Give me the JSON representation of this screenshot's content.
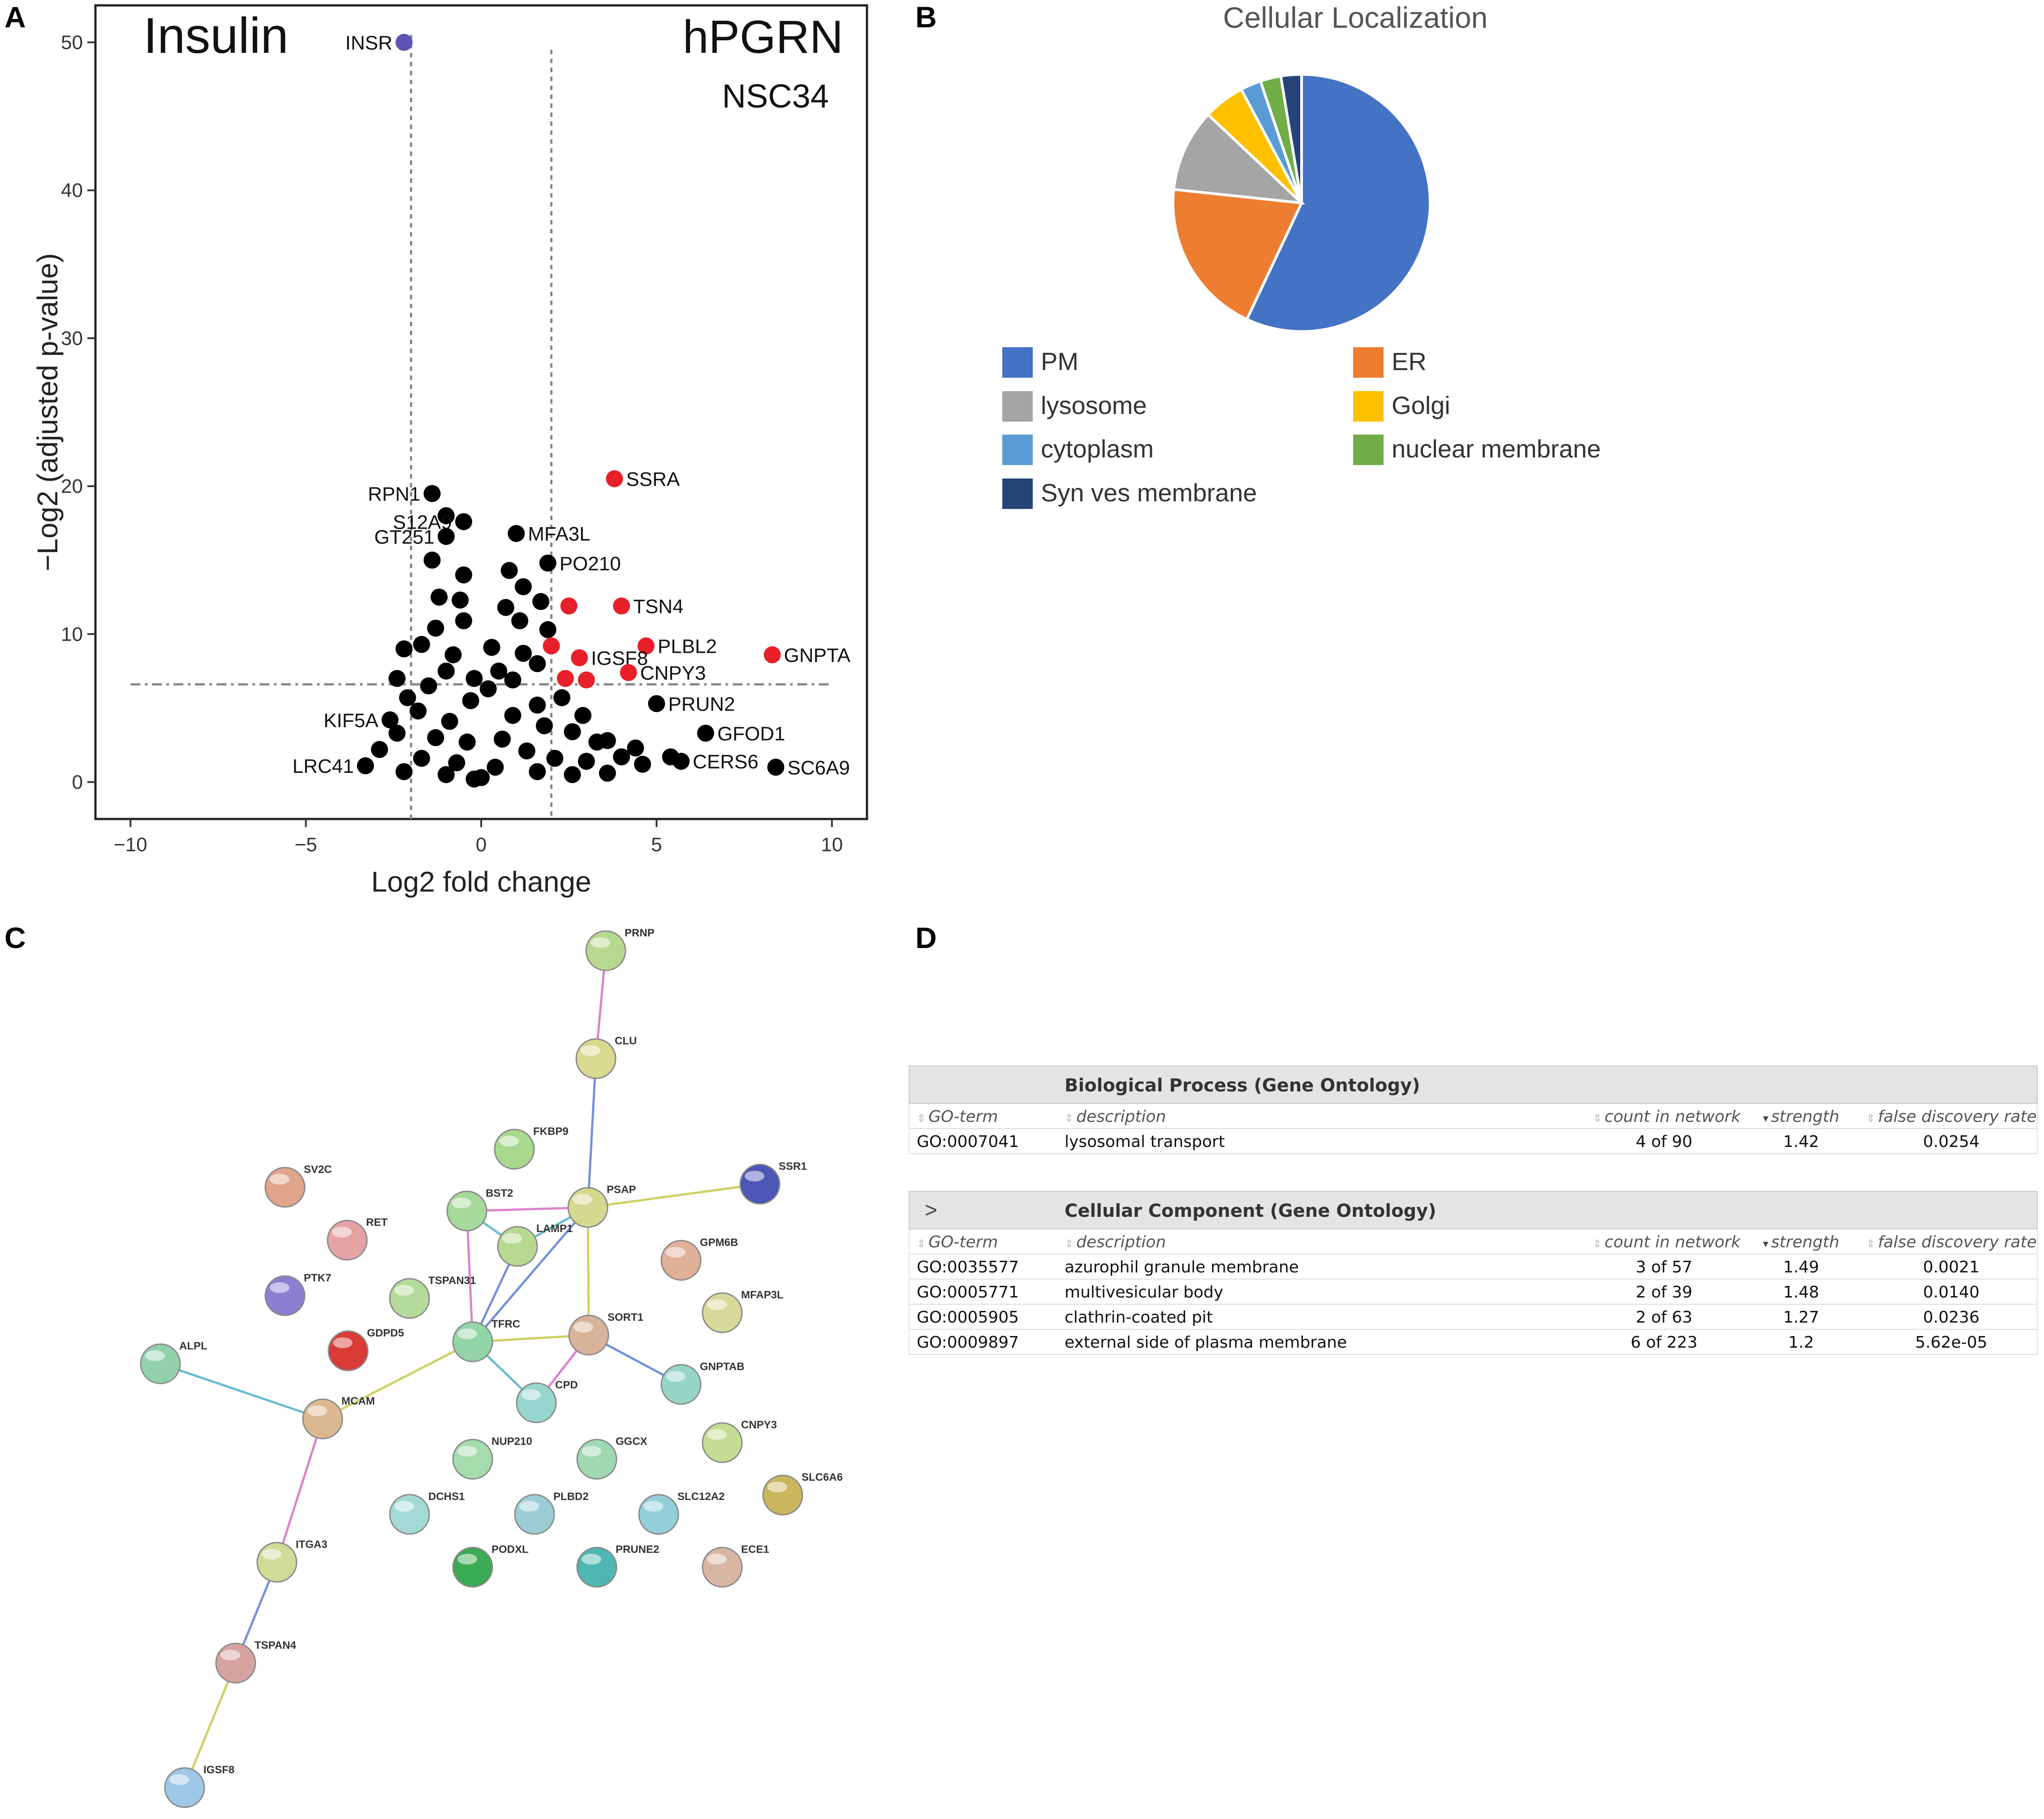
{
  "panels": {
    "a": "A",
    "b": "B",
    "c": "C",
    "d": "D"
  },
  "chart_data": [
    {
      "type": "scatter",
      "panel": "A",
      "title_left": "Insulin",
      "title_right": "hPGRN",
      "subtitle": "NSC34",
      "xlabel": "Log2 fold change",
      "ylabel": "−Log2 (adjusted p-value)",
      "xlim": [
        -11,
        11
      ],
      "ylim": [
        -2.5,
        52.5
      ],
      "xticks": [
        -10,
        -5,
        0,
        5,
        10
      ],
      "xtick_labels": [
        "−10",
        "−5",
        "0",
        "5",
        "10"
      ],
      "yticks": [
        0,
        10,
        20,
        30,
        40,
        50
      ],
      "thresholds": {
        "x_left": -2,
        "x_right": 2,
        "y": 6.6
      },
      "colors": {
        "black": "#000000",
        "red": "#e8202a",
        "blue": "#5b54b5"
      },
      "labeled_points": [
        {
          "label": "INSR",
          "x": -2.2,
          "y": 50,
          "color": "blue",
          "side": "left"
        },
        {
          "label": "SSRA",
          "x": 3.8,
          "y": 20.5,
          "color": "red",
          "side": "right"
        },
        {
          "label": "RPN1",
          "x": -1.4,
          "y": 19.5,
          "color": "black",
          "side": "left"
        },
        {
          "label": "S12A9",
          "x": -0.5,
          "y": 17.6,
          "color": "black",
          "side": "left"
        },
        {
          "label": "GT251",
          "x": -1.0,
          "y": 16.6,
          "color": "black",
          "side": "left"
        },
        {
          "label": "MFA3L",
          "x": 1.0,
          "y": 16.8,
          "color": "black",
          "side": "right"
        },
        {
          "label": "PO210",
          "x": 1.9,
          "y": 14.8,
          "color": "black",
          "side": "right"
        },
        {
          "label": "TSN4",
          "x": 4.0,
          "y": 11.9,
          "color": "red",
          "side": "right"
        },
        {
          "label": "PLBL2",
          "x": 4.7,
          "y": 9.2,
          "color": "red",
          "side": "right"
        },
        {
          "label": "GNPTA",
          "x": 8.3,
          "y": 8.6,
          "color": "red",
          "side": "right"
        },
        {
          "label": "IGSF8",
          "x": 2.8,
          "y": 8.4,
          "color": "red",
          "side": "right"
        },
        {
          "label": "CNPY3",
          "x": 4.2,
          "y": 7.4,
          "color": "red",
          "side": "right"
        },
        {
          "label": "PRUN2",
          "x": 5.0,
          "y": 5.3,
          "color": "black",
          "side": "right"
        },
        {
          "label": "GFOD1",
          "x": 6.4,
          "y": 3.3,
          "color": "black",
          "side": "right"
        },
        {
          "label": "SC6A9",
          "x": 8.4,
          "y": 1.0,
          "color": "black",
          "side": "right"
        },
        {
          "label": "CERS6",
          "x": 5.7,
          "y": 1.4,
          "color": "black",
          "side": "right"
        },
        {
          "label": "LRC41",
          "x": -3.3,
          "y": 1.1,
          "color": "black",
          "side": "left"
        },
        {
          "label": "KIF5A",
          "x": -2.6,
          "y": 4.2,
          "color": "black",
          "side": "left"
        }
      ],
      "other_points": {
        "red": [
          [
            2.5,
            11.9
          ],
          [
            2.0,
            9.2
          ],
          [
            2.4,
            7.0
          ],
          [
            3.0,
            6.9
          ]
        ],
        "black": [
          [
            -1.0,
            18.0
          ],
          [
            -1.4,
            15.0
          ],
          [
            -0.5,
            14.0
          ],
          [
            -0.6,
            12.3
          ],
          [
            -1.2,
            12.5
          ],
          [
            -0.5,
            10.9
          ],
          [
            -1.3,
            10.4
          ],
          [
            -2.2,
            9.0
          ],
          [
            -1.7,
            9.3
          ],
          [
            -0.8,
            8.6
          ],
          [
            -2.4,
            7.0
          ],
          [
            -1.0,
            7.5
          ],
          [
            -0.2,
            7.0
          ],
          [
            -1.5,
            6.5
          ],
          [
            -2.1,
            5.7
          ],
          [
            -0.3,
            5.5
          ],
          [
            -1.8,
            4.8
          ],
          [
            -0.9,
            4.1
          ],
          [
            -2.4,
            3.3
          ],
          [
            -1.3,
            3.0
          ],
          [
            -0.4,
            2.7
          ],
          [
            -2.9,
            2.2
          ],
          [
            -1.7,
            1.6
          ],
          [
            -0.7,
            1.3
          ],
          [
            -2.2,
            0.7
          ],
          [
            -1.0,
            0.5
          ],
          [
            -0.2,
            0.2
          ],
          [
            0.8,
            14.3
          ],
          [
            1.2,
            13.2
          ],
          [
            1.7,
            12.2
          ],
          [
            0.7,
            11.8
          ],
          [
            1.1,
            10.9
          ],
          [
            1.9,
            10.3
          ],
          [
            0.3,
            9.1
          ],
          [
            1.2,
            8.7
          ],
          [
            1.6,
            8.0
          ],
          [
            0.5,
            7.5
          ],
          [
            0.9,
            6.9
          ],
          [
            0.2,
            6.3
          ],
          [
            1.6,
            5.2
          ],
          [
            2.3,
            5.7
          ],
          [
            0.9,
            4.5
          ],
          [
            1.8,
            3.8
          ],
          [
            2.6,
            3.4
          ],
          [
            3.3,
            2.7
          ],
          [
            0.6,
            2.9
          ],
          [
            1.3,
            2.1
          ],
          [
            2.1,
            1.6
          ],
          [
            3.0,
            1.4
          ],
          [
            4.0,
            1.7
          ],
          [
            4.6,
            1.2
          ],
          [
            5.4,
            1.7
          ],
          [
            0.4,
            1.0
          ],
          [
            1.6,
            0.7
          ],
          [
            2.6,
            0.5
          ],
          [
            3.6,
            0.6
          ],
          [
            0.0,
            0.3
          ],
          [
            3.6,
            2.8
          ],
          [
            4.4,
            2.3
          ],
          [
            2.9,
            4.5
          ]
        ]
      }
    },
    {
      "type": "pie",
      "panel": "B",
      "title": "Cellular Localization",
      "labels": [
        "PM",
        "ER",
        "lysosome",
        "Golgi",
        "cytoplasm",
        "nuclear membrane",
        "Syn ves membrane"
      ],
      "values": [
        55,
        19,
        10,
        5,
        2.5,
        2.5,
        2.5
      ],
      "colors": [
        "#4472c4",
        "#ed7d31",
        "#a5a5a5",
        "#ffc000",
        "#5b9bd5",
        "#70ad47",
        "#264478"
      ],
      "legend_position": "bottom"
    },
    {
      "type": "network",
      "panel": "C",
      "nodes": [
        {
          "id": "PRNP",
          "color": "#b7d88f"
        },
        {
          "id": "CLU",
          "color": "#d9d98f"
        },
        {
          "id": "FKBP9",
          "color": "#a8d98f"
        },
        {
          "id": "SSR1",
          "color": "#4c56b5"
        },
        {
          "id": "SV2C",
          "color": "#e0a58a"
        },
        {
          "id": "BST2",
          "color": "#a6d99a"
        },
        {
          "id": "PSAP",
          "color": "#d3d98f"
        },
        {
          "id": "RET",
          "color": "#e6a3a3"
        },
        {
          "id": "LAMP1",
          "color": "#b7d98f"
        },
        {
          "id": "GPM6B",
          "color": "#e0b097"
        },
        {
          "id": "PTK7",
          "color": "#8a7fd1"
        },
        {
          "id": "TSPAN31",
          "color": "#b5db9a"
        },
        {
          "id": "MFAP3L",
          "color": "#d7d99a"
        },
        {
          "id": "GDPD5",
          "color": "#d93b36"
        },
        {
          "id": "TFRC",
          "color": "#93d5a8"
        },
        {
          "id": "SORT1",
          "color": "#d9b29a"
        },
        {
          "id": "ALPL",
          "color": "#93d1ad"
        },
        {
          "id": "CPD",
          "color": "#97d6cf"
        },
        {
          "id": "GNPTAB",
          "color": "#97d6c7"
        },
        {
          "id": "MCAM",
          "color": "#dbb88f"
        },
        {
          "id": "CNPY3",
          "color": "#c4dc93"
        },
        {
          "id": "NUP210",
          "color": "#a5dcae"
        },
        {
          "id": "GGCX",
          "color": "#9ed9b2"
        },
        {
          "id": "SLC6A6",
          "color": "#c9b65d"
        },
        {
          "id": "DCHS1",
          "color": "#a4dad6"
        },
        {
          "id": "PLBD2",
          "color": "#9ccdd6"
        },
        {
          "id": "SLC12A2",
          "color": "#93cfd9"
        },
        {
          "id": "PODXL",
          "color": "#3cab55"
        },
        {
          "id": "PRUNE2",
          "color": "#4fb6b1"
        },
        {
          "id": "ECE1",
          "color": "#d9b6a3"
        },
        {
          "id": "ITGA3",
          "color": "#cfdb97"
        },
        {
          "id": "TSPAN4",
          "color": "#d6a3a0"
        },
        {
          "id": "IGSF8",
          "color": "#9ec8e6"
        }
      ],
      "edges": [
        [
          "PRNP",
          "CLU"
        ],
        [
          "CLU",
          "PSAP"
        ],
        [
          "PSAP",
          "SSR1"
        ],
        [
          "PSAP",
          "LAMP1"
        ],
        [
          "PSAP",
          "BST2"
        ],
        [
          "PSAP",
          "TFRC"
        ],
        [
          "PSAP",
          "SORT1"
        ],
        [
          "BST2",
          "LAMP1"
        ],
        [
          "BST2",
          "TFRC"
        ],
        [
          "LAMP1",
          "TFRC"
        ],
        [
          "TFRC",
          "SORT1"
        ],
        [
          "TFRC",
          "CPD"
        ],
        [
          "SORT1",
          "CPD"
        ],
        [
          "SORT1",
          "GNPTAB"
        ],
        [
          "TFRC",
          "MCAM"
        ],
        [
          "ALPL",
          "MCAM"
        ],
        [
          "MCAM",
          "ITGA3"
        ],
        [
          "ITGA3",
          "TSPAN4"
        ],
        [
          "TSPAN4",
          "IGSF8"
        ]
      ]
    }
  ],
  "table": {
    "sections": [
      {
        "title": "Biological Process (Gene Ontology)",
        "chevron": "",
        "headers": [
          "GO-term",
          "description",
          "count in network",
          "strength",
          "false discovery rate"
        ],
        "rows": [
          [
            "GO:0007041",
            "lysosomal transport",
            "4 of 90",
            "1.42",
            "0.0254"
          ]
        ]
      },
      {
        "title": "Cellular Component (Gene Ontology)",
        "chevron": ">",
        "headers": [
          "GO-term",
          "description",
          "count in network",
          "strength",
          "false discovery rate"
        ],
        "rows": [
          [
            "GO:0035577",
            "azurophil granule membrane",
            "3 of 57",
            "1.49",
            "0.0021"
          ],
          [
            "GO:0005771",
            "multivesicular body",
            "2 of 39",
            "1.48",
            "0.0140"
          ],
          [
            "GO:0005905",
            "clathrin-coated pit",
            "2 of 63",
            "1.27",
            "0.0236"
          ],
          [
            "GO:0009897",
            "external side of plasma membrane",
            "6 of 223",
            "1.2",
            "5.62e-05"
          ]
        ]
      }
    ]
  }
}
